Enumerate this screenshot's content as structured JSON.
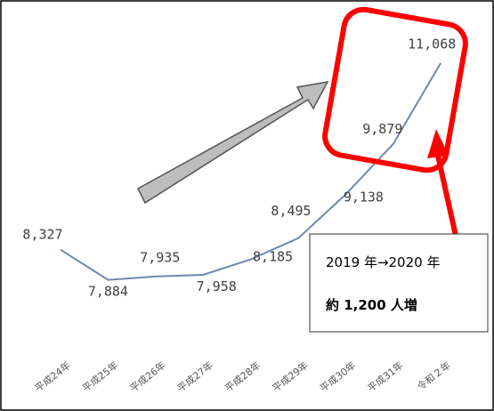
{
  "chart_data": {
    "type": "line",
    "categories": [
      "平成24年",
      "平成25年",
      "平成26年",
      "平成27年",
      "平成28年",
      "平成29年",
      "平成30年",
      "平成31年",
      "令和２年"
    ],
    "series": [
      {
        "color": "#6f88b0",
        "values": [
          8327,
          7884,
          7935,
          7958,
          8185,
          8495,
          9138,
          9879,
          11068
        ],
        "value_labels": [
          "8,327",
          "7,884",
          "7,935",
          "7,958",
          "8,185",
          "8,495",
          "9,138",
          "9,879",
          "11,068"
        ]
      }
    ],
    "ylim": [
      6900,
      11600
    ],
    "annotations": [
      "2019 年→2020 年",
      "約 1,200 人増"
    ]
  }
}
